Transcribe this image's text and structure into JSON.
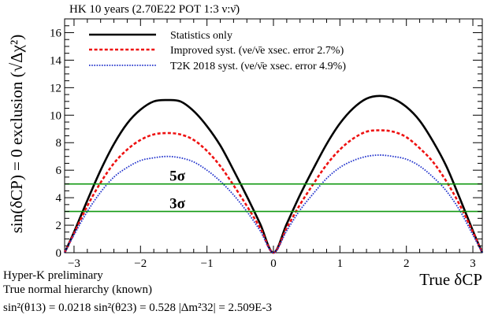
{
  "chart_data": {
    "type": "line",
    "title": "HK 10 years (2.70E22 POT 1:3 ν:ν̄)",
    "xlabel": "True δCP",
    "ylabel": "sin(δCP) = 0 exclusion (√Δχ²)",
    "xlim": [
      -3.14159,
      3.14159
    ],
    "ylim": [
      0,
      17
    ],
    "x_ticks": [
      -3,
      -2,
      -1,
      0,
      1,
      2,
      3
    ],
    "x_tick_labels": [
      "−3",
      "−2",
      "−1",
      "0",
      "1",
      "2",
      "3"
    ],
    "y_ticks": [
      0,
      2,
      4,
      6,
      8,
      10,
      12,
      14,
      16
    ],
    "y_tick_labels": [
      "0",
      "2",
      "4",
      "6",
      "8",
      "10",
      "12",
      "14",
      "16"
    ],
    "grid": false,
    "legend_position": "top-center",
    "series": [
      {
        "name": "Statistics only",
        "color": "#000000",
        "style": "solid",
        "x": [
          -3.1416,
          -3.0,
          -2.8,
          -2.6,
          -2.4,
          -2.2,
          -2.0,
          -1.8,
          -1.6,
          -1.4,
          -1.2,
          -1.0,
          -0.8,
          -0.6,
          -0.4,
          -0.2,
          0.0,
          0.2,
          0.4,
          0.6,
          0.8,
          1.0,
          1.2,
          1.4,
          1.6,
          1.8,
          2.0,
          2.2,
          2.4,
          2.6,
          2.8,
          3.0,
          3.1416
        ],
        "y": [
          0.0,
          1.5,
          3.8,
          6.0,
          7.9,
          9.4,
          10.4,
          11.0,
          11.1,
          11.0,
          10.3,
          9.2,
          7.8,
          6.0,
          4.1,
          2.1,
          0.0,
          2.1,
          4.2,
          6.1,
          7.9,
          9.4,
          10.5,
          11.2,
          11.4,
          11.2,
          10.6,
          9.6,
          8.1,
          6.3,
          4.0,
          1.6,
          0.0
        ]
      },
      {
        "name": "Improved syst. (νe/ν̄e xsec. error 2.7%)",
        "color": "#ee1111",
        "style": "dashed",
        "x": [
          -3.1416,
          -3.0,
          -2.8,
          -2.6,
          -2.4,
          -2.2,
          -2.0,
          -1.8,
          -1.6,
          -1.4,
          -1.2,
          -1.0,
          -0.8,
          -0.6,
          -0.4,
          -0.2,
          0.0,
          0.2,
          0.4,
          0.6,
          0.8,
          1.0,
          1.2,
          1.4,
          1.6,
          1.8,
          2.0,
          2.2,
          2.4,
          2.6,
          2.8,
          3.0,
          3.1416
        ],
        "y": [
          0.0,
          1.4,
          3.4,
          5.1,
          6.5,
          7.5,
          8.2,
          8.6,
          8.7,
          8.6,
          8.2,
          7.4,
          6.3,
          4.9,
          3.4,
          1.8,
          0.0,
          1.8,
          3.5,
          5.0,
          6.4,
          7.5,
          8.3,
          8.8,
          8.9,
          8.8,
          8.4,
          7.6,
          6.6,
          5.2,
          3.5,
          1.5,
          0.0
        ]
      },
      {
        "name": "T2K 2018 syst. (νe/ν̄e xsec. error 4.9%)",
        "color": "#2233cc",
        "style": "dotted",
        "x": [
          -3.1416,
          -3.0,
          -2.8,
          -2.6,
          -2.4,
          -2.2,
          -2.0,
          -1.8,
          -1.6,
          -1.4,
          -1.2,
          -1.0,
          -0.8,
          -0.6,
          -0.4,
          -0.2,
          0.0,
          0.2,
          0.4,
          0.6,
          0.8,
          1.0,
          1.2,
          1.4,
          1.6,
          1.8,
          2.0,
          2.2,
          2.4,
          2.6,
          2.8,
          3.0,
          3.1416
        ],
        "y": [
          0.0,
          1.3,
          3.0,
          4.4,
          5.5,
          6.2,
          6.7,
          6.9,
          7.0,
          6.9,
          6.6,
          6.0,
          5.2,
          4.2,
          3.0,
          1.6,
          0.0,
          1.6,
          3.1,
          4.3,
          5.4,
          6.2,
          6.7,
          7.0,
          7.1,
          7.0,
          6.8,
          6.3,
          5.5,
          4.5,
          3.1,
          1.3,
          0.0
        ]
      }
    ],
    "reference_lines": [
      {
        "y": 5,
        "label": "5σ",
        "color": "#119911"
      },
      {
        "y": 3,
        "label": "3σ",
        "color": "#119911"
      }
    ]
  },
  "notes": {
    "line1": "Hyper-K preliminary",
    "line2": "True normal hierarchy (known)",
    "line3": "sin²(θ13) = 0.0218  sin²(θ23) = 0.528  |Δm²32| = 2.509E-3"
  }
}
